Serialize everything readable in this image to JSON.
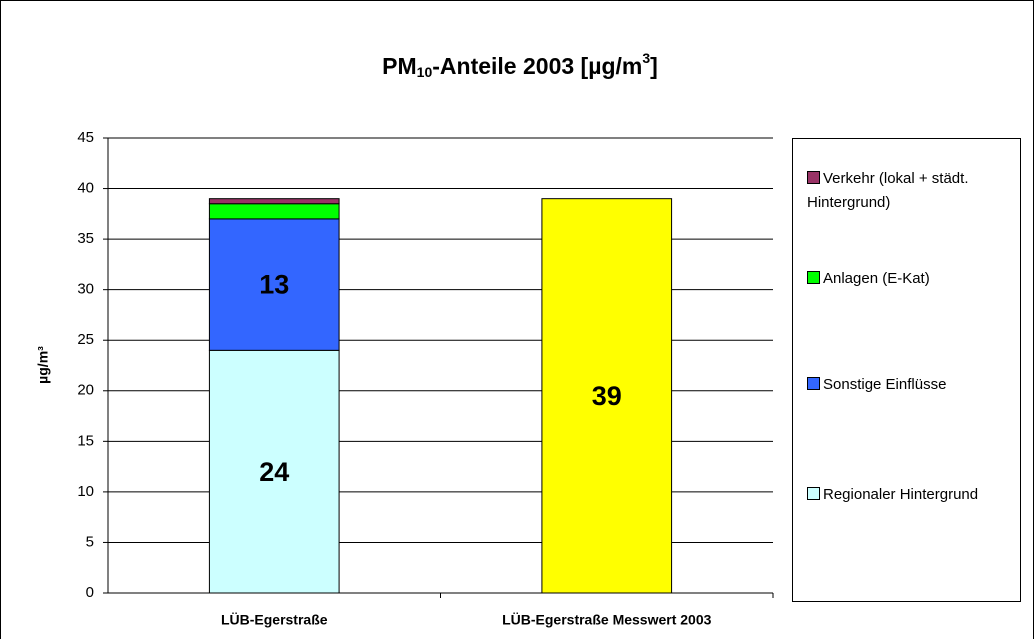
{
  "chart_data": {
    "type": "stacked_bar",
    "title": [
      "PM",
      "10",
      "-Anteile 2003 [µg/m",
      "3",
      "]"
    ],
    "ylabel": "µg/m³",
    "categories": [
      "LÜB-Egerstraße",
      "LÜB-Egerstraße Messwert 2003"
    ],
    "series": [
      {
        "name": "Regionaler Hintergrund",
        "color": "#ccffff",
        "values": [
          24,
          null
        ],
        "labels": true
      },
      {
        "name": "Sonstige Einflüsse",
        "color": "#3366ff",
        "values": [
          13,
          null
        ],
        "labels": true,
        "label_color": "#ffffff"
      },
      {
        "name": "Anlagen (E-Kat)",
        "color": "#00ff00",
        "values": [
          1.5,
          null
        ]
      },
      {
        "name": "Verkehr (lokal + städt. Hintergrund)",
        "color": "#993366",
        "values": [
          0.5,
          null
        ]
      },
      {
        "color": "#ffff00",
        "values": [
          null,
          39
        ],
        "labels": true
      }
    ],
    "ylim": [
      0,
      45
    ],
    "yticks": [
      0,
      5,
      10,
      15,
      20,
      25,
      30,
      35,
      40,
      45
    ],
    "grid": true,
    "legend": "right"
  }
}
